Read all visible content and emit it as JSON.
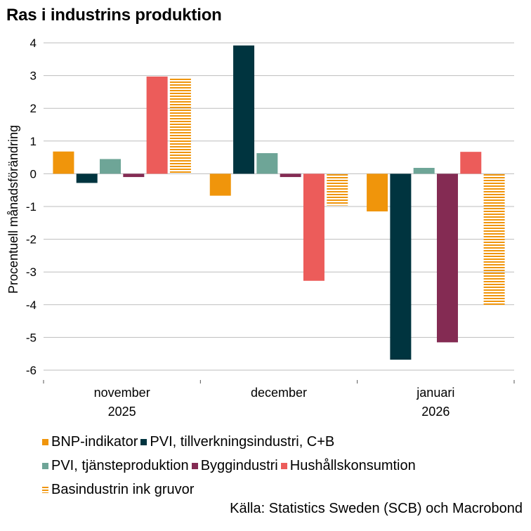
{
  "chart_data": {
    "type": "bar",
    "title": "Ras i industrins produktion",
    "ylabel": "Procentuell månadsförändring",
    "xlabel": "",
    "ylim": [
      -6,
      4
    ],
    "yticks": [
      4,
      3,
      2,
      1,
      0,
      -1,
      -2,
      -3,
      -4,
      -5,
      -6
    ],
    "ytick_labels": [
      "4",
      "3",
      "2",
      "1",
      "0",
      "-1",
      "-2",
      "-3",
      "-4",
      "-5",
      "-6"
    ],
    "categories": [
      {
        "line1": "november",
        "line2": "2025"
      },
      {
        "line1": "december",
        "line2": ""
      },
      {
        "line1": "januari",
        "line2": "2026"
      }
    ],
    "series": [
      {
        "name": "BNP-indikator",
        "color": "#f0950b",
        "pattern": "solid",
        "values": [
          0.68,
          -0.67,
          -1.15
        ]
      },
      {
        "name": "PVI, tillverkningsindustri, C+B",
        "color": "#00343f",
        "pattern": "solid",
        "values": [
          -0.28,
          3.92,
          -5.68
        ]
      },
      {
        "name": "PVI, tjänsteproduktion",
        "color": "#6ea597",
        "pattern": "solid",
        "values": [
          0.45,
          0.63,
          0.18
        ]
      },
      {
        "name": "Byggindustri",
        "color": "#842b53",
        "pattern": "solid",
        "values": [
          -0.1,
          -0.1,
          -5.15
        ]
      },
      {
        "name": "Hushållskonsumtion",
        "color": "#ec5c5a",
        "pattern": "solid",
        "values": [
          2.97,
          -3.27,
          0.67
        ]
      },
      {
        "name": "Basindustrin ink gruvor",
        "color": "#f0950b",
        "pattern": "striped",
        "values": [
          2.92,
          -0.97,
          -4.02
        ]
      }
    ],
    "legend_rows": [
      [
        0,
        1
      ],
      [
        2,
        3,
        4
      ],
      [
        5
      ]
    ],
    "source": "Källa: Statistics Sweden (SCB) och Macrobond"
  }
}
